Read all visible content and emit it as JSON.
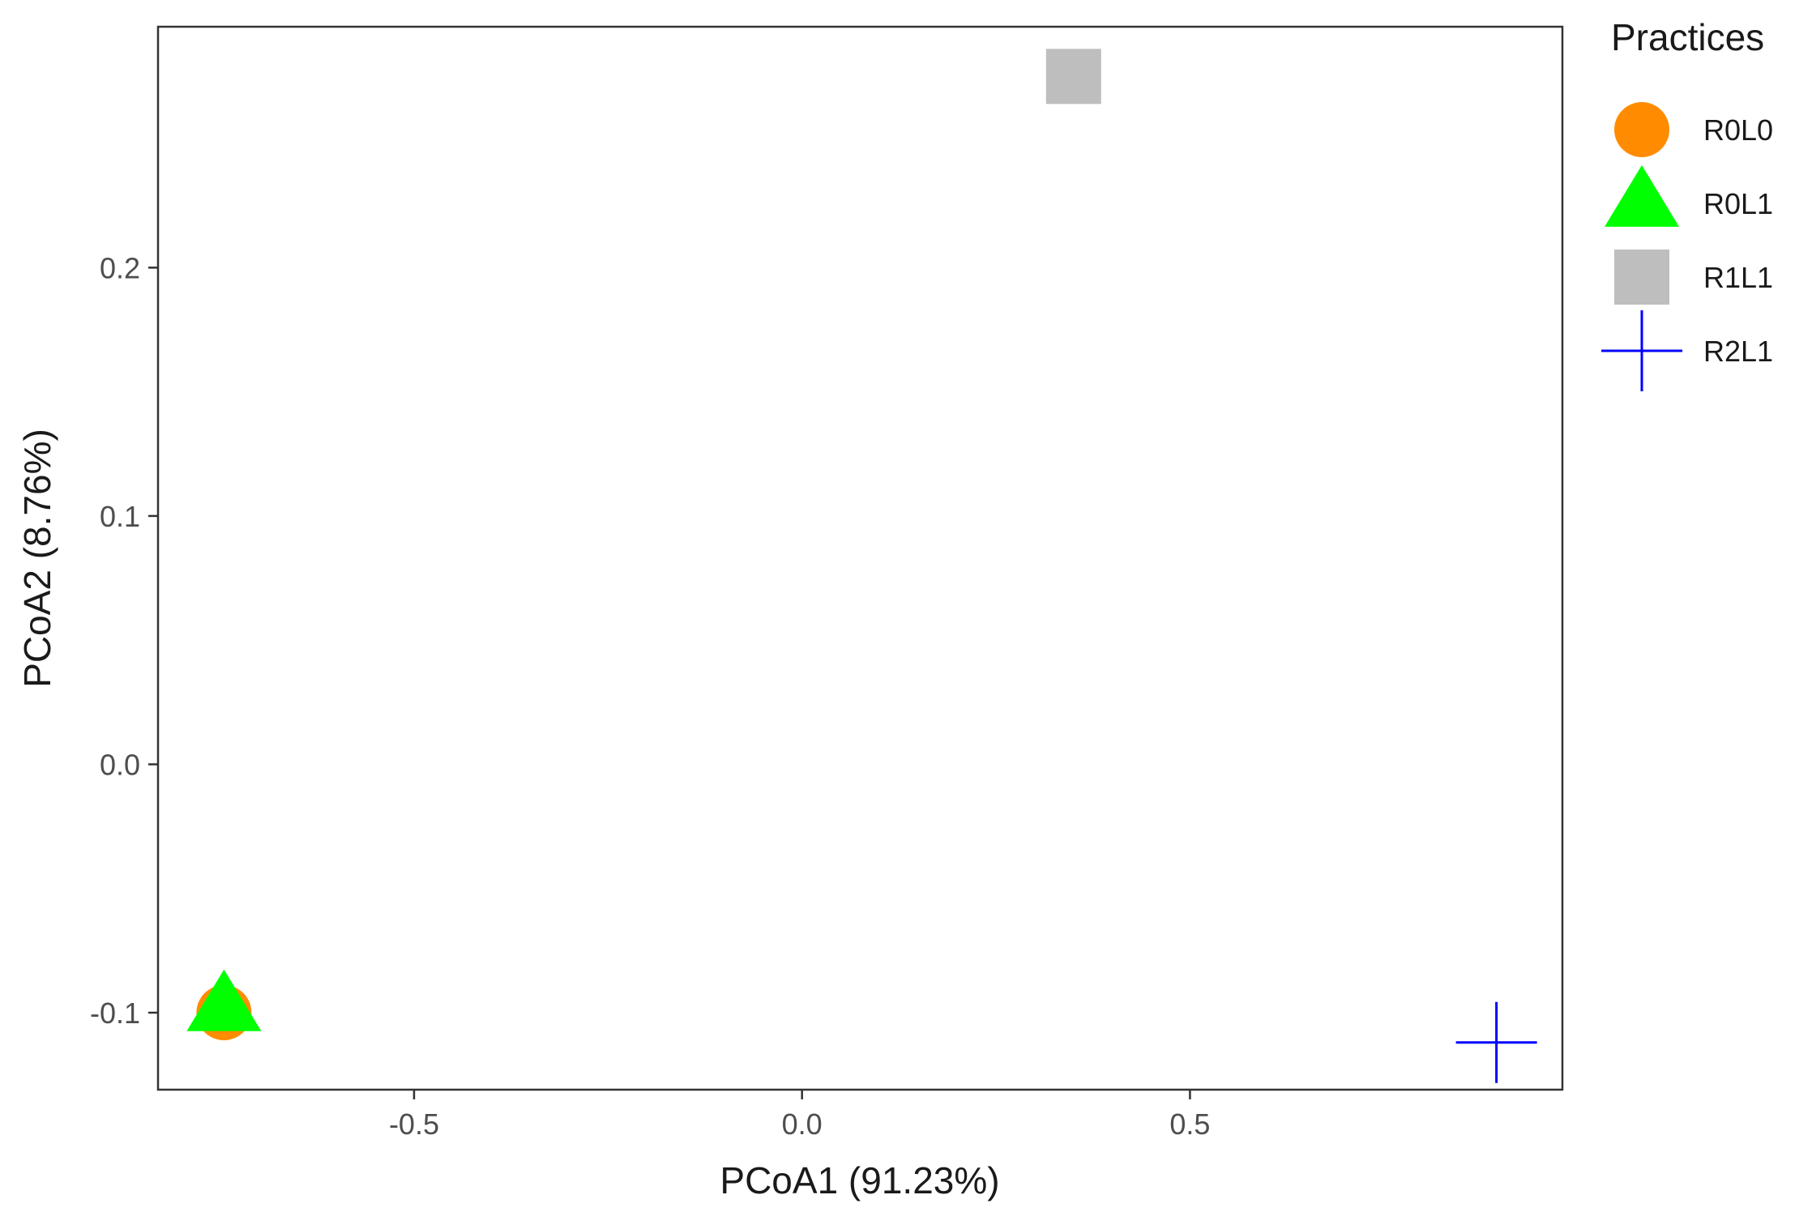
{
  "chart_data": {
    "type": "scatter",
    "xlabel": "PCoA1 (91.23%)",
    "ylabel": "PCoA2 (8.76%)",
    "xlim": [
      -0.83,
      0.98
    ],
    "ylim": [
      -0.131,
      0.297
    ],
    "x_ticks": [
      -0.5,
      0.0,
      0.5
    ],
    "x_tick_labels": [
      "-0.5",
      "0.0",
      "0.5"
    ],
    "y_ticks": [
      -0.1,
      0.0,
      0.1,
      0.2
    ],
    "y_tick_labels": [
      "-0.1",
      "0.0",
      "0.1",
      "0.2"
    ],
    "grid": false,
    "legend": {
      "title": "Practices",
      "placement": "right"
    },
    "series": [
      {
        "name": "R0L0",
        "shape": "circle",
        "color": "#ff8c00",
        "x": [
          -0.745
        ],
        "y": [
          -0.1
        ]
      },
      {
        "name": "R0L1",
        "shape": "triangle",
        "color": "#00ff00",
        "x": [
          -0.745
        ],
        "y": [
          -0.098
        ]
      },
      {
        "name": "R1L1",
        "shape": "square",
        "color": "#bebebe",
        "x": [
          0.35
        ],
        "y": [
          0.277
        ]
      },
      {
        "name": "R2L1",
        "shape": "cross",
        "color": "#0000ff",
        "x": [
          0.895
        ],
        "y": [
          -0.112
        ]
      }
    ]
  }
}
